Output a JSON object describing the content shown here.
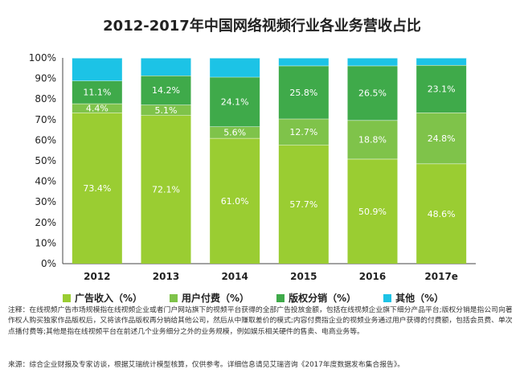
{
  "chart_data": {
    "type": "bar",
    "stacked": true,
    "title": "2012-2017年中国网络视频行业各业务营收占比",
    "categories": [
      "2012",
      "2013",
      "2014",
      "2015",
      "2016",
      "2017e"
    ],
    "ylim": [
      0,
      100
    ],
    "yticks": [
      "0%",
      "10%",
      "20%",
      "30%",
      "40%",
      "50%",
      "60%",
      "70%",
      "80%",
      "90%",
      "100%"
    ],
    "legend_position": "bottom",
    "series": [
      {
        "name": "广告收入（%）",
        "color": "#9ACD32",
        "values": [
          73.4,
          72.1,
          61.0,
          57.7,
          50.9,
          48.6
        ],
        "labels": [
          "73.4%",
          "72.1%",
          "61.0%",
          "57.7%",
          "50.9%",
          "48.6%"
        ]
      },
      {
        "name": "用户付费（%）",
        "color": "#7FC34A",
        "values": [
          4.4,
          5.1,
          5.6,
          12.7,
          18.8,
          24.8
        ],
        "labels": [
          "4.4%",
          "5.1%",
          "5.6%",
          "12.7%",
          "18.8%",
          "24.8%"
        ]
      },
      {
        "name": "版权分销（%）",
        "color": "#3FAA4A",
        "values": [
          11.1,
          14.2,
          24.1,
          25.8,
          26.5,
          23.1
        ],
        "labels": [
          "11.1%",
          "14.2%",
          "24.1%",
          "25.8%",
          "26.5%",
          "23.1%"
        ]
      },
      {
        "name": "其他（%）",
        "color": "#1CC3E6",
        "values": [
          11.1,
          8.6,
          9.3,
          3.8,
          3.8,
          3.5
        ],
        "labels": [
          "",
          "",
          "",
          "",
          "",
          ""
        ]
      }
    ]
  },
  "note": "注释：在线视频广告市场规模指在线视频企业或者门户网站旗下的视频平台获得的全部广告投放金额，包括在线视频企业旗下细分产品平台;版权分销是指公司向著作权人购买独家作品版权后，又将该作品版权再分销给其他公司，然后从中赚取差价的模式;内容付费指企业的视频业务通过用户获得的付费额，包括会员费、单次点播付费等;其他是指在线视频平台在前述几个业务细分之外的业务规模，例如娱乐相关硬件的售卖、电商业务等。",
  "source": "来源：综合企业财报及专家访谈，根据艾瑞统计模型核算，仅供参考。详细信息请见艾瑞咨询《2017年度数据发布集合报告》。"
}
